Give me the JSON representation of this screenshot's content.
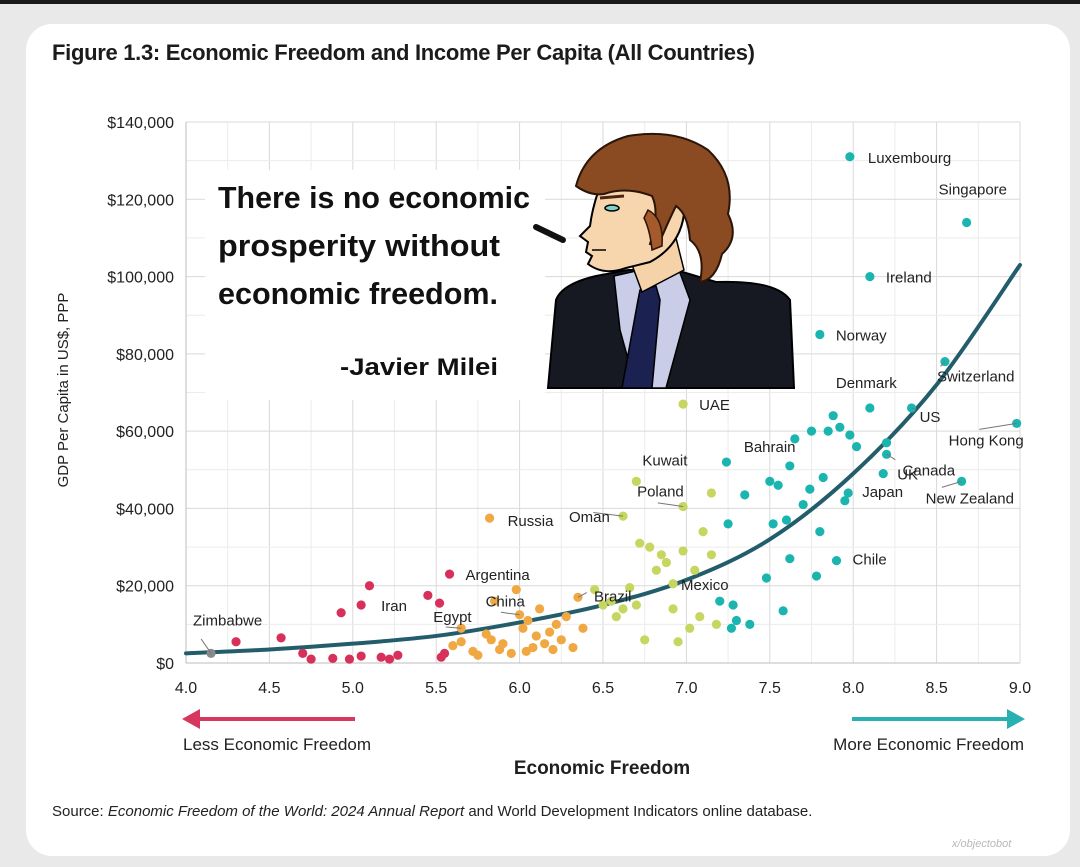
{
  "figure_title": "Figure 1.3: Economic Freedom and Income Per Capita (All Countries)",
  "source": {
    "prefix": "Source: ",
    "publication": "Economic Freedom of the World: 2024 Annual Report",
    "suffix": " and World Development Indicators online database."
  },
  "credit": "x/objectobot",
  "quote": {
    "lines": [
      "There is no economic",
      "prosperity without",
      "economic freedom."
    ],
    "attribution": "-Javier Milei"
  },
  "colors": {
    "low": "#d7315b",
    "low_mid": "#f0a842",
    "mid": "#c7d660",
    "high": "#1bb5b0",
    "trend": "#235d6b",
    "left_arrow": "#d7365d",
    "right_arrow": "#29b0b0"
  },
  "chart_data": {
    "type": "scatter",
    "title": "Figure 1.3: Economic Freedom and Income Per Capita (All Countries)",
    "xlabel": "Economic Freedom",
    "ylabel": "GDP Per Capita in US$, PPP",
    "xlim": [
      4.0,
      9.0
    ],
    "ylim": [
      0,
      140000
    ],
    "x_ticks": [
      "4.0",
      "4.5",
      "5.0",
      "5.5",
      "6.0",
      "6.5",
      "7.0",
      "7.5",
      "8.0",
      "8.5",
      "9.0"
    ],
    "y_ticks": [
      "$0",
      "$20,000",
      "$40,000",
      "$60,000",
      "$80,000",
      "$100,000",
      "$120,000",
      "$140,000"
    ],
    "grid": true,
    "x_axis_notes": {
      "left": "Less Economic Freedom",
      "right": "More Economic Freedom"
    },
    "labeled_points": [
      {
        "label": "Luxembourg",
        "x": 7.98,
        "y": 131000
      },
      {
        "label": "Singapore",
        "x": 8.68,
        "y": 114000
      },
      {
        "label": "Ireland",
        "x": 8.1,
        "y": 100000
      },
      {
        "label": "Norway",
        "x": 7.8,
        "y": 85000
      },
      {
        "label": "Denmark",
        "x": 8.1,
        "y": 66000
      },
      {
        "label": "Switzerland",
        "x": 8.55,
        "y": 78000
      },
      {
        "label": "US",
        "x": 8.35,
        "y": 66000
      },
      {
        "label": "Hong Kong",
        "x": 8.98,
        "y": 62000
      },
      {
        "label": "Canada",
        "x": 8.2,
        "y": 54000
      },
      {
        "label": "UK",
        "x": 8.18,
        "y": 49000
      },
      {
        "label": "Japan",
        "x": 7.97,
        "y": 44000
      },
      {
        "label": "New Zealand",
        "x": 8.65,
        "y": 47000
      },
      {
        "label": "Chile",
        "x": 7.9,
        "y": 26500
      },
      {
        "label": "UAE",
        "x": 6.98,
        "y": 67000
      },
      {
        "label": "Bahrain",
        "x": 7.62,
        "y": 51000
      },
      {
        "label": "Kuwait",
        "x": 6.7,
        "y": 47000
      },
      {
        "label": "Poland",
        "x": 6.98,
        "y": 40500
      },
      {
        "label": "Oman",
        "x": 6.62,
        "y": 38000
      },
      {
        "label": "Russia",
        "x": 5.82,
        "y": 37500
      },
      {
        "label": "Mexico",
        "x": 6.92,
        "y": 20500
      },
      {
        "label": "Brazil",
        "x": 6.35,
        "y": 17000
      },
      {
        "label": "Argentina",
        "x": 5.58,
        "y": 23000
      },
      {
        "label": "China",
        "x": 6.0,
        "y": 12500
      },
      {
        "label": "Egypt",
        "x": 5.65,
        "y": 9000
      },
      {
        "label": "Iran",
        "x": 5.05,
        "y": 15000
      },
      {
        "label": "Zimbabwe",
        "x": 4.15,
        "y": 2500
      }
    ],
    "points": [
      {
        "x": 4.3,
        "y": 5500
      },
      {
        "x": 4.57,
        "y": 6500
      },
      {
        "x": 4.7,
        "y": 2500
      },
      {
        "x": 4.75,
        "y": 1000
      },
      {
        "x": 4.88,
        "y": 1200
      },
      {
        "x": 4.93,
        "y": 13000
      },
      {
        "x": 4.98,
        "y": 1000
      },
      {
        "x": 5.05,
        "y": 1800
      },
      {
        "x": 5.1,
        "y": 20000
      },
      {
        "x": 5.17,
        "y": 1500
      },
      {
        "x": 5.22,
        "y": 1000
      },
      {
        "x": 5.27,
        "y": 2000
      },
      {
        "x": 5.45,
        "y": 17500
      },
      {
        "x": 5.52,
        "y": 15500
      },
      {
        "x": 5.53,
        "y": 1500
      },
      {
        "x": 5.55,
        "y": 2500
      },
      {
        "x": 5.6,
        "y": 4500
      },
      {
        "x": 5.65,
        "y": 5500
      },
      {
        "x": 5.72,
        "y": 3000
      },
      {
        "x": 5.85,
        "y": 16000
      },
      {
        "x": 5.75,
        "y": 2000
      },
      {
        "x": 5.8,
        "y": 7500
      },
      {
        "x": 5.83,
        "y": 6000
      },
      {
        "x": 5.88,
        "y": 3500
      },
      {
        "x": 5.9,
        "y": 5000
      },
      {
        "x": 5.95,
        "y": 2500
      },
      {
        "x": 5.98,
        "y": 19000
      },
      {
        "x": 6.02,
        "y": 9000
      },
      {
        "x": 6.05,
        "y": 11000
      },
      {
        "x": 6.08,
        "y": 4000
      },
      {
        "x": 6.1,
        "y": 7000
      },
      {
        "x": 6.12,
        "y": 14000
      },
      {
        "x": 6.15,
        "y": 5000
      },
      {
        "x": 6.18,
        "y": 8000
      },
      {
        "x": 6.2,
        "y": 3500
      },
      {
        "x": 6.22,
        "y": 10000
      },
      {
        "x": 6.25,
        "y": 6000
      },
      {
        "x": 6.28,
        "y": 12000
      },
      {
        "x": 6.32,
        "y": 4000
      },
      {
        "x": 6.38,
        "y": 9000
      },
      {
        "x": 6.04,
        "y": 3000
      },
      {
        "x": 6.45,
        "y": 19000
      },
      {
        "x": 6.5,
        "y": 15000
      },
      {
        "x": 6.55,
        "y": 16000
      },
      {
        "x": 6.58,
        "y": 12000
      },
      {
        "x": 6.62,
        "y": 14000
      },
      {
        "x": 6.66,
        "y": 19500
      },
      {
        "x": 6.7,
        "y": 15000
      },
      {
        "x": 6.72,
        "y": 31000
      },
      {
        "x": 6.75,
        "y": 6000
      },
      {
        "x": 6.78,
        "y": 30000
      },
      {
        "x": 6.82,
        "y": 24000
      },
      {
        "x": 6.85,
        "y": 28000
      },
      {
        "x": 6.88,
        "y": 26000
      },
      {
        "x": 6.92,
        "y": 14000
      },
      {
        "x": 6.95,
        "y": 5500
      },
      {
        "x": 6.98,
        "y": 29000
      },
      {
        "x": 7.02,
        "y": 9000
      },
      {
        "x": 7.05,
        "y": 24000
      },
      {
        "x": 7.1,
        "y": 34000
      },
      {
        "x": 7.15,
        "y": 28000
      },
      {
        "x": 7.2,
        "y": 16000
      },
      {
        "x": 7.25,
        "y": 36000
      },
      {
        "x": 7.28,
        "y": 15000
      },
      {
        "x": 7.3,
        "y": 11000
      },
      {
        "x": 7.35,
        "y": 43500
      },
      {
        "x": 7.24,
        "y": 52000
      },
      {
        "x": 7.15,
        "y": 44000
      },
      {
        "x": 7.08,
        "y": 12000
      },
      {
        "x": 7.18,
        "y": 10000
      },
      {
        "x": 7.27,
        "y": 9000
      },
      {
        "x": 7.38,
        "y": 10000
      },
      {
        "x": 7.48,
        "y": 22000
      },
      {
        "x": 7.5,
        "y": 47000
      },
      {
        "x": 7.52,
        "y": 36000
      },
      {
        "x": 7.55,
        "y": 46000
      },
      {
        "x": 7.58,
        "y": 13500
      },
      {
        "x": 7.6,
        "y": 37000
      },
      {
        "x": 7.62,
        "y": 27000
      },
      {
        "x": 7.65,
        "y": 58000
      },
      {
        "x": 7.7,
        "y": 41000
      },
      {
        "x": 7.75,
        "y": 60000
      },
      {
        "x": 7.78,
        "y": 22500
      },
      {
        "x": 7.8,
        "y": 34000
      },
      {
        "x": 7.82,
        "y": 48000
      },
      {
        "x": 7.85,
        "y": 60000
      },
      {
        "x": 7.88,
        "y": 64000
      },
      {
        "x": 7.92,
        "y": 61000
      },
      {
        "x": 7.95,
        "y": 42000
      },
      {
        "x": 7.98,
        "y": 59000
      },
      {
        "x": 8.02,
        "y": 56000
      },
      {
        "x": 7.74,
        "y": 45000
      },
      {
        "x": 8.2,
        "y": 57000
      }
    ],
    "trend": [
      {
        "x": 4.0,
        "y": 2500
      },
      {
        "x": 4.5,
        "y": 3500
      },
      {
        "x": 5.0,
        "y": 5000
      },
      {
        "x": 5.5,
        "y": 7000
      },
      {
        "x": 6.0,
        "y": 10500
      },
      {
        "x": 6.5,
        "y": 15000
      },
      {
        "x": 7.0,
        "y": 21500
      },
      {
        "x": 7.5,
        "y": 32000
      },
      {
        "x": 8.0,
        "y": 49000
      },
      {
        "x": 8.5,
        "y": 72000
      },
      {
        "x": 9.0,
        "y": 103000
      }
    ]
  }
}
